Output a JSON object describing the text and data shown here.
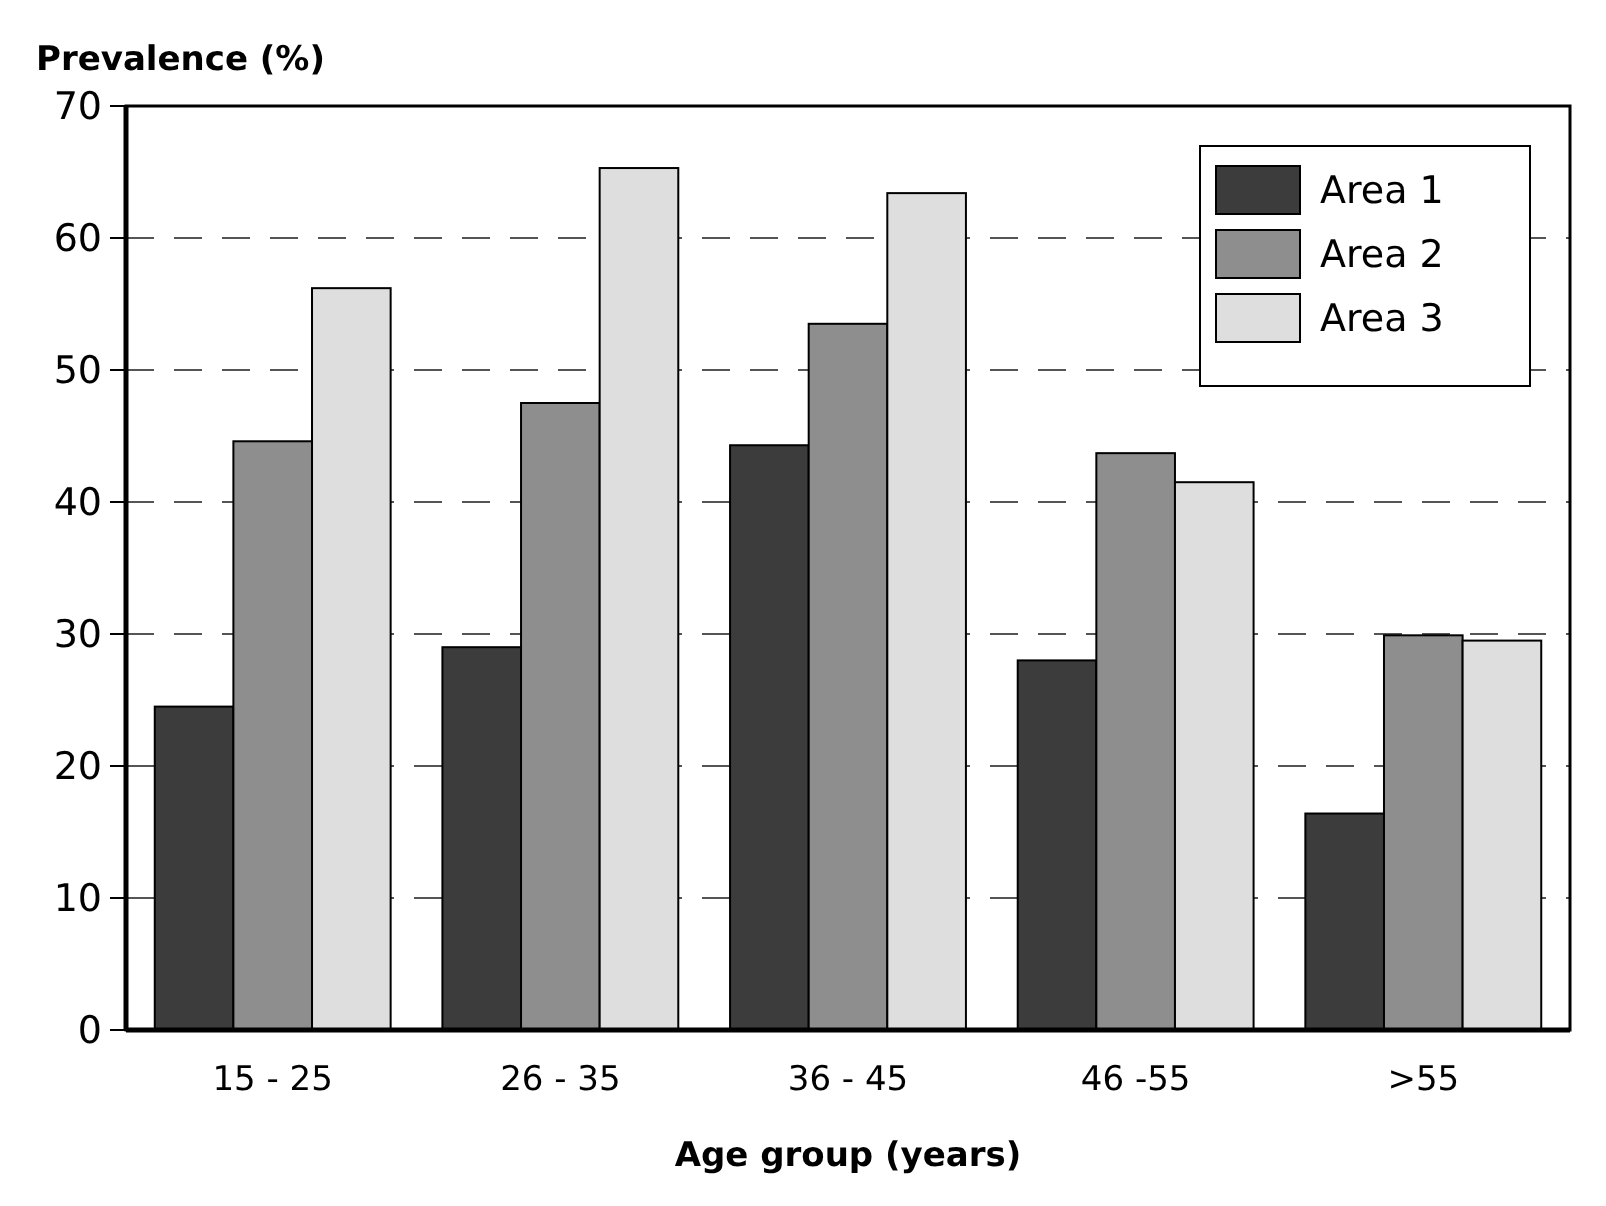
{
  "chart_data": {
    "type": "bar",
    "ylabel": "Prevalence (%)",
    "xlabel": "Age group (years)",
    "categories": [
      "15 - 25",
      "26 - 35",
      "36 - 45",
      "46 -55",
      ">55"
    ],
    "series": [
      {
        "name": "Area 1",
        "color": "#3c3c3c",
        "values": [
          24.5,
          29.0,
          44.3,
          28.0,
          16.4
        ]
      },
      {
        "name": "Area 2",
        "color": "#8e8e8e",
        "values": [
          44.6,
          47.5,
          53.5,
          43.7,
          29.9
        ]
      },
      {
        "name": "Area 3",
        "color": "#dedede",
        "values": [
          56.2,
          65.3,
          63.4,
          41.5,
          29.5
        ]
      }
    ],
    "ylim": [
      0,
      70
    ],
    "yticks": [
      0,
      10,
      20,
      30,
      40,
      50,
      60,
      70
    ],
    "grid": "y",
    "legend": "top right"
  }
}
